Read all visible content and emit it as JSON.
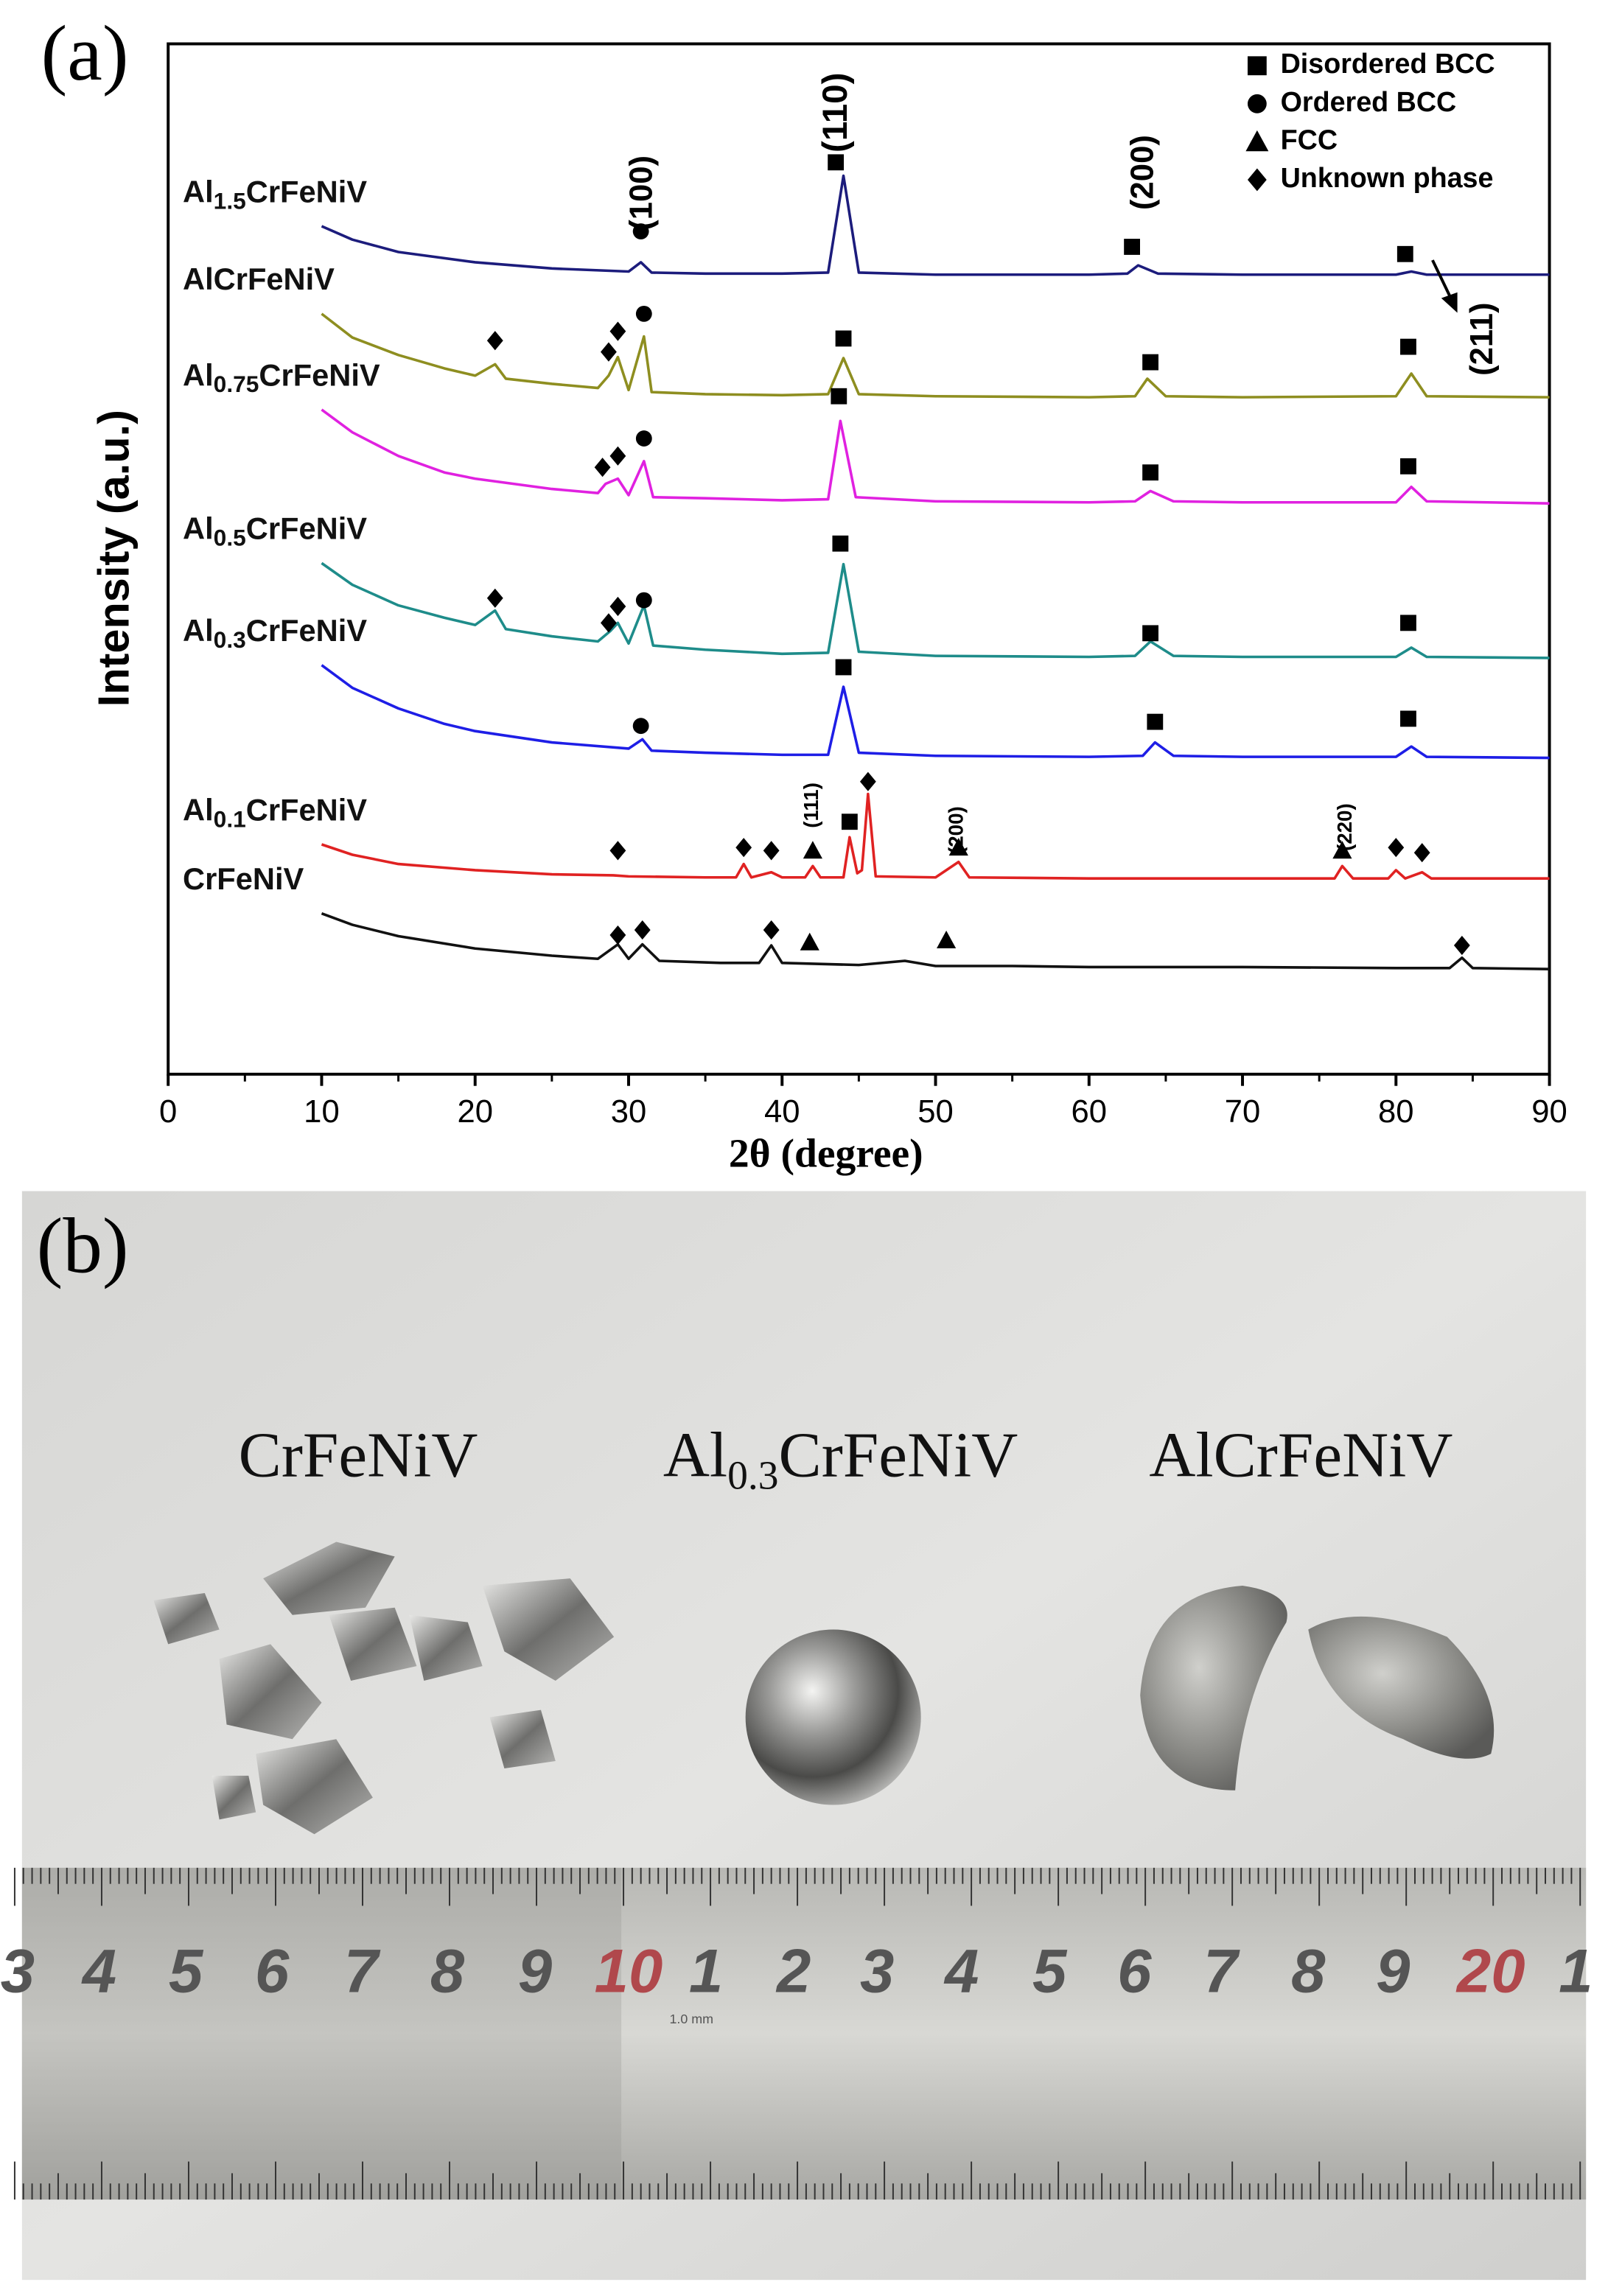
{
  "chart_data": {
    "type": "line",
    "panel_label": "(a)",
    "xlabel": "2θ (degree)",
    "ylabel": "Intensity (a.u.)",
    "xlim": [
      0,
      90
    ],
    "xticks": [
      0,
      10,
      20,
      30,
      40,
      50,
      60,
      70,
      80,
      90
    ],
    "ylim": [
      0,
      100
    ],
    "series": [
      {
        "label": [
          "Al",
          "1.5",
          "CrFeNiV"
        ],
        "color": "#1c1c7c",
        "x": [
          10,
          12,
          15,
          20,
          25,
          30,
          30.8,
          31.5,
          35,
          40,
          43,
          44,
          45,
          50,
          60,
          62.5,
          63.2,
          64.5,
          70,
          80,
          81,
          82,
          90
        ],
        "values": [
          82.3,
          81.0,
          79.8,
          78.8,
          78.2,
          77.9,
          78.8,
          77.8,
          77.7,
          77.7,
          77.8,
          87.2,
          77.8,
          77.6,
          77.6,
          77.7,
          78.5,
          77.7,
          77.6,
          77.6,
          77.9,
          77.6,
          77.6
        ]
      },
      {
        "label": [
          "AlCrFeNiV"
        ],
        "color": "#8e8e20",
        "x": [
          10,
          12,
          15,
          18,
          20,
          21.3,
          22,
          25,
          28,
          28.7,
          29.3,
          30,
          31,
          31.5,
          35,
          40,
          43,
          44,
          45,
          50,
          60,
          63,
          63.8,
          65,
          70,
          80,
          81,
          82,
          90
        ],
        "values": [
          73.8,
          71.5,
          69.8,
          68.5,
          67.8,
          68.9,
          67.5,
          67.0,
          66.6,
          67.8,
          69.6,
          66.4,
          71.6,
          66.2,
          66.0,
          65.9,
          66.0,
          69.5,
          66.0,
          65.8,
          65.7,
          65.8,
          67.5,
          65.8,
          65.7,
          65.8,
          68.0,
          65.8,
          65.7
        ]
      },
      {
        "label": [
          "Al",
          "0.75",
          "CrFeNiV"
        ],
        "color": "#e021e0",
        "x": [
          10,
          12,
          15,
          18,
          20,
          25,
          28,
          28.5,
          29.3,
          30,
          31,
          31.6,
          35,
          40,
          43,
          43.8,
          44.8,
          50,
          60,
          63,
          64,
          65.5,
          70,
          80,
          81,
          82,
          90
        ],
        "values": [
          64.5,
          62.3,
          60.0,
          58.4,
          57.8,
          56.8,
          56.4,
          57.3,
          57.8,
          56.2,
          59.5,
          56.0,
          55.9,
          55.7,
          55.8,
          63.4,
          56.0,
          55.6,
          55.5,
          55.6,
          56.6,
          55.6,
          55.5,
          55.5,
          57.0,
          55.6,
          55.4
        ]
      },
      {
        "label": [
          "Al",
          "0.5",
          "CrFeNiV"
        ],
        "color": "#1e8c8a",
        "x": [
          10,
          12,
          15,
          18,
          20,
          21.3,
          22,
          25,
          28,
          28.8,
          29.3,
          30,
          31,
          31.6,
          35,
          40,
          43,
          44,
          45,
          50,
          60,
          63,
          64,
          65.5,
          70,
          80,
          81,
          82,
          90
        ],
        "values": [
          49.6,
          47.5,
          45.5,
          44.3,
          43.6,
          45.0,
          43.2,
          42.5,
          42.0,
          43.0,
          43.8,
          41.8,
          45.5,
          41.6,
          41.2,
          40.8,
          40.9,
          49.5,
          41.0,
          40.6,
          40.5,
          40.6,
          42.0,
          40.6,
          40.5,
          40.5,
          41.4,
          40.5,
          40.4
        ]
      },
      {
        "label": [
          "Al",
          "0.3",
          "CrFeNiV"
        ],
        "color": "#1e1ee6",
        "x": [
          10,
          12,
          15,
          18,
          20,
          25,
          30,
          30.9,
          31.5,
          35,
          40,
          43,
          44,
          45,
          50,
          60,
          63.5,
          64.3,
          65.5,
          70,
          80,
          81,
          82,
          90
        ],
        "values": [
          39.7,
          37.5,
          35.5,
          34.0,
          33.3,
          32.2,
          31.6,
          32.5,
          31.4,
          31.2,
          31.0,
          31.0,
          37.6,
          31.2,
          30.9,
          30.8,
          30.9,
          32.2,
          30.9,
          30.8,
          30.8,
          31.8,
          30.8,
          30.7
        ]
      },
      {
        "label": [
          "Al",
          "0.1",
          "CrFeNiV"
        ],
        "color": "#e02222",
        "x": [
          10,
          12,
          15,
          20,
          25,
          29,
          30,
          35,
          37,
          37.5,
          38,
          39.3,
          40,
          41.5,
          42,
          42.5,
          44,
          44.4,
          44.9,
          45.2,
          45.6,
          46.1,
          50,
          51.5,
          52.2,
          60,
          70,
          76,
          76.5,
          77.2,
          79.5,
          80,
          80.6,
          81.7,
          82.3,
          90
        ],
        "values": [
          22.3,
          21.3,
          20.4,
          19.8,
          19.4,
          19.3,
          19.2,
          19.1,
          19.1,
          20.4,
          19.1,
          19.6,
          19.1,
          19.1,
          20.2,
          19.1,
          19.1,
          23.0,
          19.5,
          19.8,
          27.2,
          19.2,
          19.1,
          20.6,
          19.1,
          19.0,
          19.0,
          19.0,
          20.2,
          19.0,
          19.0,
          19.8,
          19.0,
          19.6,
          19.0,
          19.0
        ]
      },
      {
        "label": [
          "CrFeNiV"
        ],
        "color": "#111111",
        "x": [
          10,
          12,
          15,
          20,
          25,
          28,
          29.3,
          30,
          30.9,
          32,
          36,
          38.5,
          39.3,
          40,
          45,
          48,
          50,
          55,
          60,
          70,
          80,
          83.5,
          84.3,
          85,
          90
        ],
        "values": [
          15.6,
          14.5,
          13.4,
          12.2,
          11.5,
          11.2,
          12.6,
          11.2,
          12.6,
          11.0,
          10.8,
          10.8,
          12.5,
          10.8,
          10.6,
          11.0,
          10.5,
          10.5,
          10.4,
          10.4,
          10.3,
          10.3,
          11.3,
          10.3,
          10.2
        ]
      }
    ],
    "markers": [
      {
        "symbol": "circle",
        "x": 30.8,
        "y": 81.8
      },
      {
        "symbol": "square",
        "x": 43.5,
        "y": 88.5
      },
      {
        "symbol": "square",
        "x": 62.8,
        "y": 80.3
      },
      {
        "symbol": "square",
        "x": 80.6,
        "y": 79.6
      },
      {
        "symbol": "diamond",
        "x": 21.3,
        "y": 71.2
      },
      {
        "symbol": "diamond",
        "x": 28.7,
        "y": 70.1
      },
      {
        "symbol": "diamond",
        "x": 29.3,
        "y": 72.1
      },
      {
        "symbol": "circle",
        "x": 31,
        "y": 73.8
      },
      {
        "symbol": "square",
        "x": 44,
        "y": 71.4
      },
      {
        "symbol": "square",
        "x": 64,
        "y": 69.1
      },
      {
        "symbol": "square",
        "x": 80.8,
        "y": 70.6
      },
      {
        "symbol": "diamond",
        "x": 28.3,
        "y": 58.9
      },
      {
        "symbol": "diamond",
        "x": 29.3,
        "y": 60.0
      },
      {
        "symbol": "circle",
        "x": 31,
        "y": 61.7
      },
      {
        "symbol": "square",
        "x": 43.7,
        "y": 65.8
      },
      {
        "symbol": "square",
        "x": 64,
        "y": 58.4
      },
      {
        "symbol": "square",
        "x": 80.8,
        "y": 59.0
      },
      {
        "symbol": "diamond",
        "x": 21.3,
        "y": 46.2
      },
      {
        "symbol": "diamond",
        "x": 28.7,
        "y": 43.8
      },
      {
        "symbol": "diamond",
        "x": 29.3,
        "y": 45.4
      },
      {
        "symbol": "circle",
        "x": 31,
        "y": 46.0
      },
      {
        "symbol": "square",
        "x": 43.8,
        "y": 51.5
      },
      {
        "symbol": "square",
        "x": 64,
        "y": 42.8
      },
      {
        "symbol": "square",
        "x": 80.8,
        "y": 43.8
      },
      {
        "symbol": "circle",
        "x": 30.8,
        "y": 33.8
      },
      {
        "symbol": "square",
        "x": 44,
        "y": 39.5
      },
      {
        "symbol": "square",
        "x": 64.3,
        "y": 34.2
      },
      {
        "symbol": "square",
        "x": 80.8,
        "y": 34.5
      },
      {
        "symbol": "diamond",
        "x": 29.3,
        "y": 21.7
      },
      {
        "symbol": "diamond",
        "x": 37.5,
        "y": 22.0
      },
      {
        "symbol": "diamond",
        "x": 39.3,
        "y": 21.7
      },
      {
        "symbol": "triangle",
        "x": 42,
        "y": 21.7
      },
      {
        "symbol": "square",
        "x": 44.4,
        "y": 24.5
      },
      {
        "symbol": "diamond",
        "x": 45.6,
        "y": 28.4
      },
      {
        "symbol": "triangle",
        "x": 51.5,
        "y": 22.0
      },
      {
        "symbol": "triangle",
        "x": 76.5,
        "y": 21.7
      },
      {
        "symbol": "diamond",
        "x": 80,
        "y": 22.0
      },
      {
        "symbol": "diamond",
        "x": 81.7,
        "y": 21.5
      },
      {
        "symbol": "diamond",
        "x": 29.3,
        "y": 13.5
      },
      {
        "symbol": "diamond",
        "x": 30.9,
        "y": 14.0
      },
      {
        "symbol": "diamond",
        "x": 39.3,
        "y": 14.0
      },
      {
        "symbol": "triangle",
        "x": 41.8,
        "y": 12.8
      },
      {
        "symbol": "triangle",
        "x": 50.7,
        "y": 13.0
      },
      {
        "symbol": "diamond",
        "x": 84.3,
        "y": 12.5
      }
    ],
    "legend": [
      {
        "symbol": "square",
        "label": "Disordered BCC"
      },
      {
        "symbol": "circle",
        "label": "Ordered BCC"
      },
      {
        "symbol": "triangle",
        "label": "FCC"
      },
      {
        "symbol": "diamond",
        "label": "Unknown phase"
      }
    ],
    "peak_labels": [
      "(100)",
      "(110)",
      "(200)",
      "(211)",
      "(111)",
      "(200)",
      "(220)"
    ]
  },
  "photo": {
    "panel_label": "(b)",
    "samples": [
      [
        "CrFeNiV"
      ],
      [
        "Al",
        "0.3",
        "CrFeNiV"
      ],
      [
        "AlCrFeNiV"
      ]
    ],
    "ruler": {
      "unit": "1.0 mm",
      "numbers": [
        {
          "text": "3",
          "color": "#555"
        },
        {
          "text": "4",
          "color": "#555"
        },
        {
          "text": "5",
          "color": "#555"
        },
        {
          "text": "6",
          "color": "#555"
        },
        {
          "text": "7",
          "color": "#555"
        },
        {
          "text": "8",
          "color": "#555"
        },
        {
          "text": "9",
          "color": "#555"
        },
        {
          "text": "10",
          "color": "#b0484c"
        },
        {
          "text": "1",
          "color": "#555"
        },
        {
          "text": "2",
          "color": "#555"
        },
        {
          "text": "3",
          "color": "#555"
        },
        {
          "text": "4",
          "color": "#555"
        },
        {
          "text": "5",
          "color": "#555"
        },
        {
          "text": "6",
          "color": "#555"
        },
        {
          "text": "7",
          "color": "#555"
        },
        {
          "text": "8",
          "color": "#555"
        },
        {
          "text": "9",
          "color": "#555"
        },
        {
          "text": "20",
          "color": "#b0484c"
        },
        {
          "text": "1",
          "color": "#555"
        }
      ]
    }
  }
}
